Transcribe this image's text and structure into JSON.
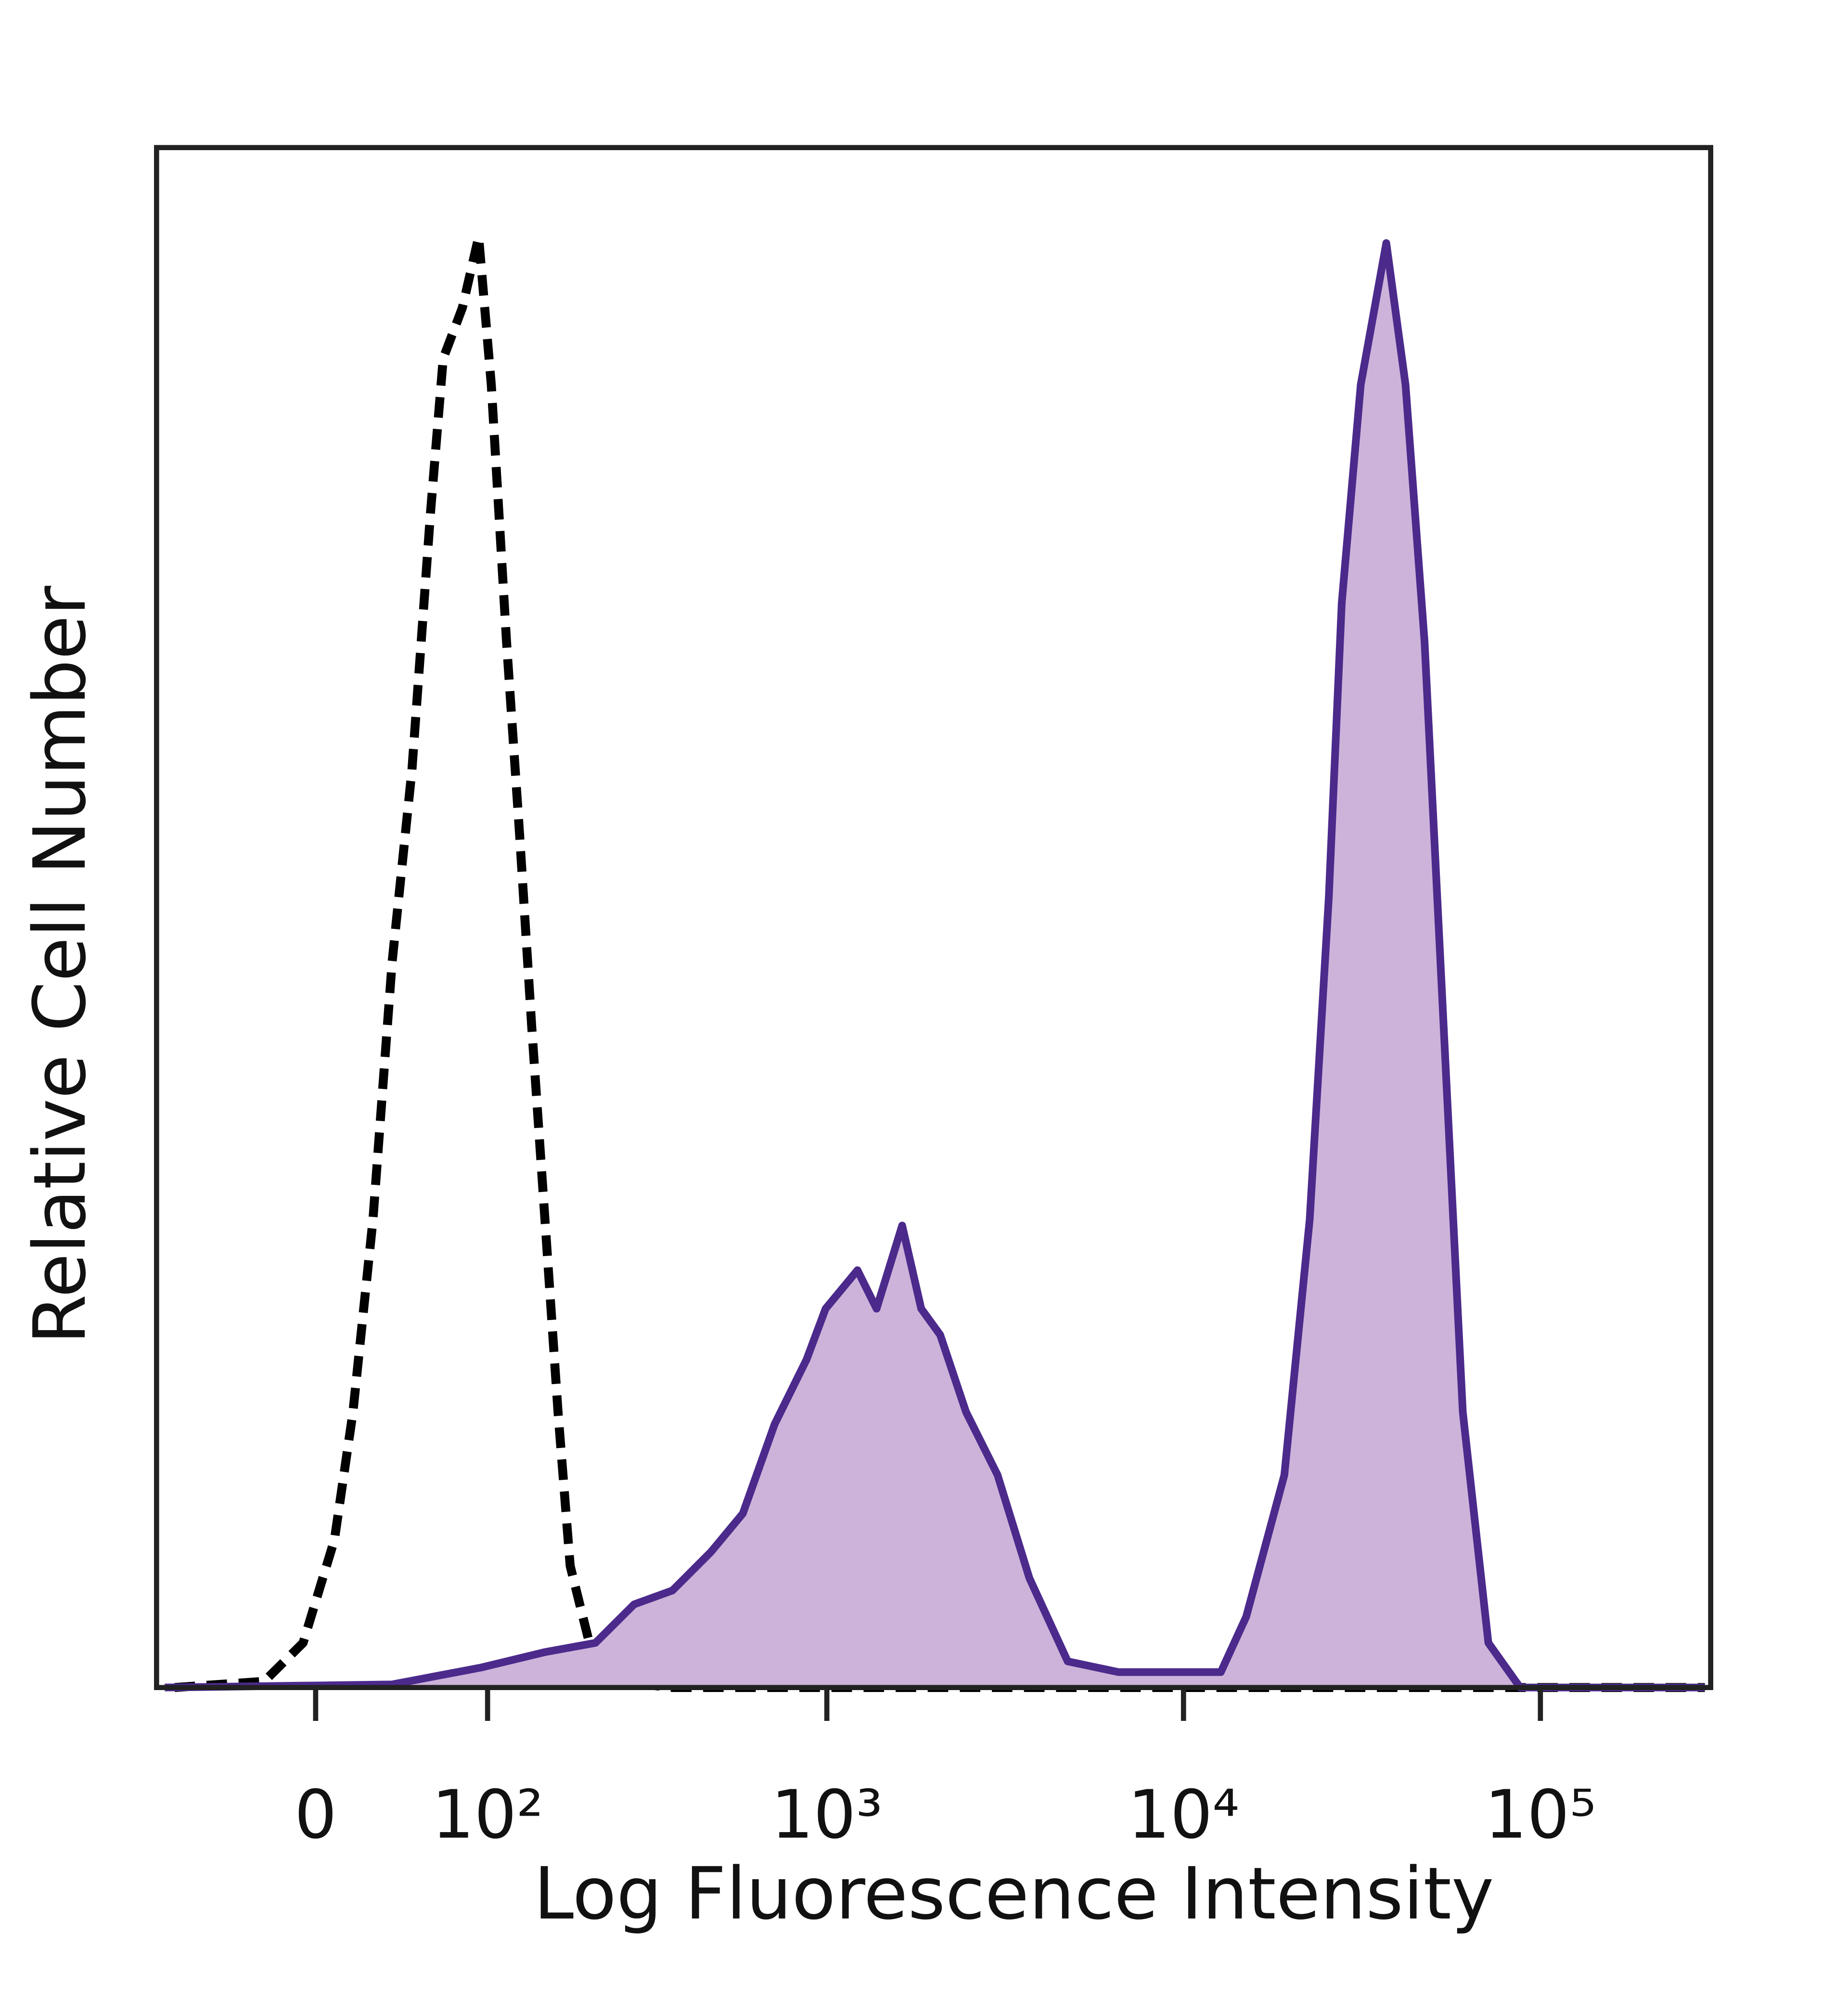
{
  "chart_data": {
    "type": "line",
    "x_label": "Log Fluorescence Intensity",
    "y_label": "Relative Cell Number",
    "xscale": "biexponential",
    "xlim": [
      -90,
      300000
    ],
    "ylim": [
      0,
      100
    ],
    "xticks": [
      0,
      {
        "value": 100,
        "label": "10²"
      },
      {
        "value": 1000,
        "label": "10³"
      },
      {
        "value": 10000,
        "label": "10⁴"
      },
      {
        "value": 100000,
        "label": "10⁵"
      }
    ],
    "series": [
      {
        "color": "#000000",
        "dashed": true,
        "x": [
          -77,
          -25,
          -6,
          9,
          18,
          28,
          38,
          49,
          60,
          68,
          81,
          93,
          103,
          116,
          128,
          140,
          154,
          169,
          184,
          210,
          250,
          366,
          289000
        ],
        "values": [
          0,
          0.4,
          2.9,
          9.6,
          17.9,
          30.4,
          47.1,
          59.6,
          76.3,
          86.3,
          89.6,
          94.2,
          84.6,
          67.9,
          55.4,
          42.9,
          30.4,
          17.9,
          7.9,
          2.9,
          0.4,
          0,
          0
        ]
      },
      {
        "color": "#4b2a8c",
        "fill": "#cdb3d9",
        "dashed": false,
        "x": [
          -84,
          38,
          95,
          154,
          219,
          284,
          366,
          471,
          580,
          713,
          877,
          992,
          1219,
          1379,
          1627,
          1840,
          2080,
          2457,
          3012,
          3700,
          4736,
          6579,
          12721,
          14985,
          19166,
          22570,
          25530,
          27750,
          31376,
          37000,
          41884,
          47360,
          53576,
          60606,
          71484,
          87764,
          289000
        ],
        "values": [
          0,
          0.2,
          1.3,
          2.3,
          2.9,
          5.4,
          6.3,
          8.8,
          11.3,
          17.1,
          21.3,
          24.6,
          27.1,
          24.6,
          30,
          24.6,
          22.9,
          17.9,
          13.8,
          7.1,
          1.7,
          1,
          1,
          4.6,
          13.8,
          30.4,
          51.3,
          70.4,
          84.6,
          93.8,
          84.6,
          67.9,
          42.9,
          17.9,
          2.9,
          0,
          0
        ]
      }
    ]
  }
}
